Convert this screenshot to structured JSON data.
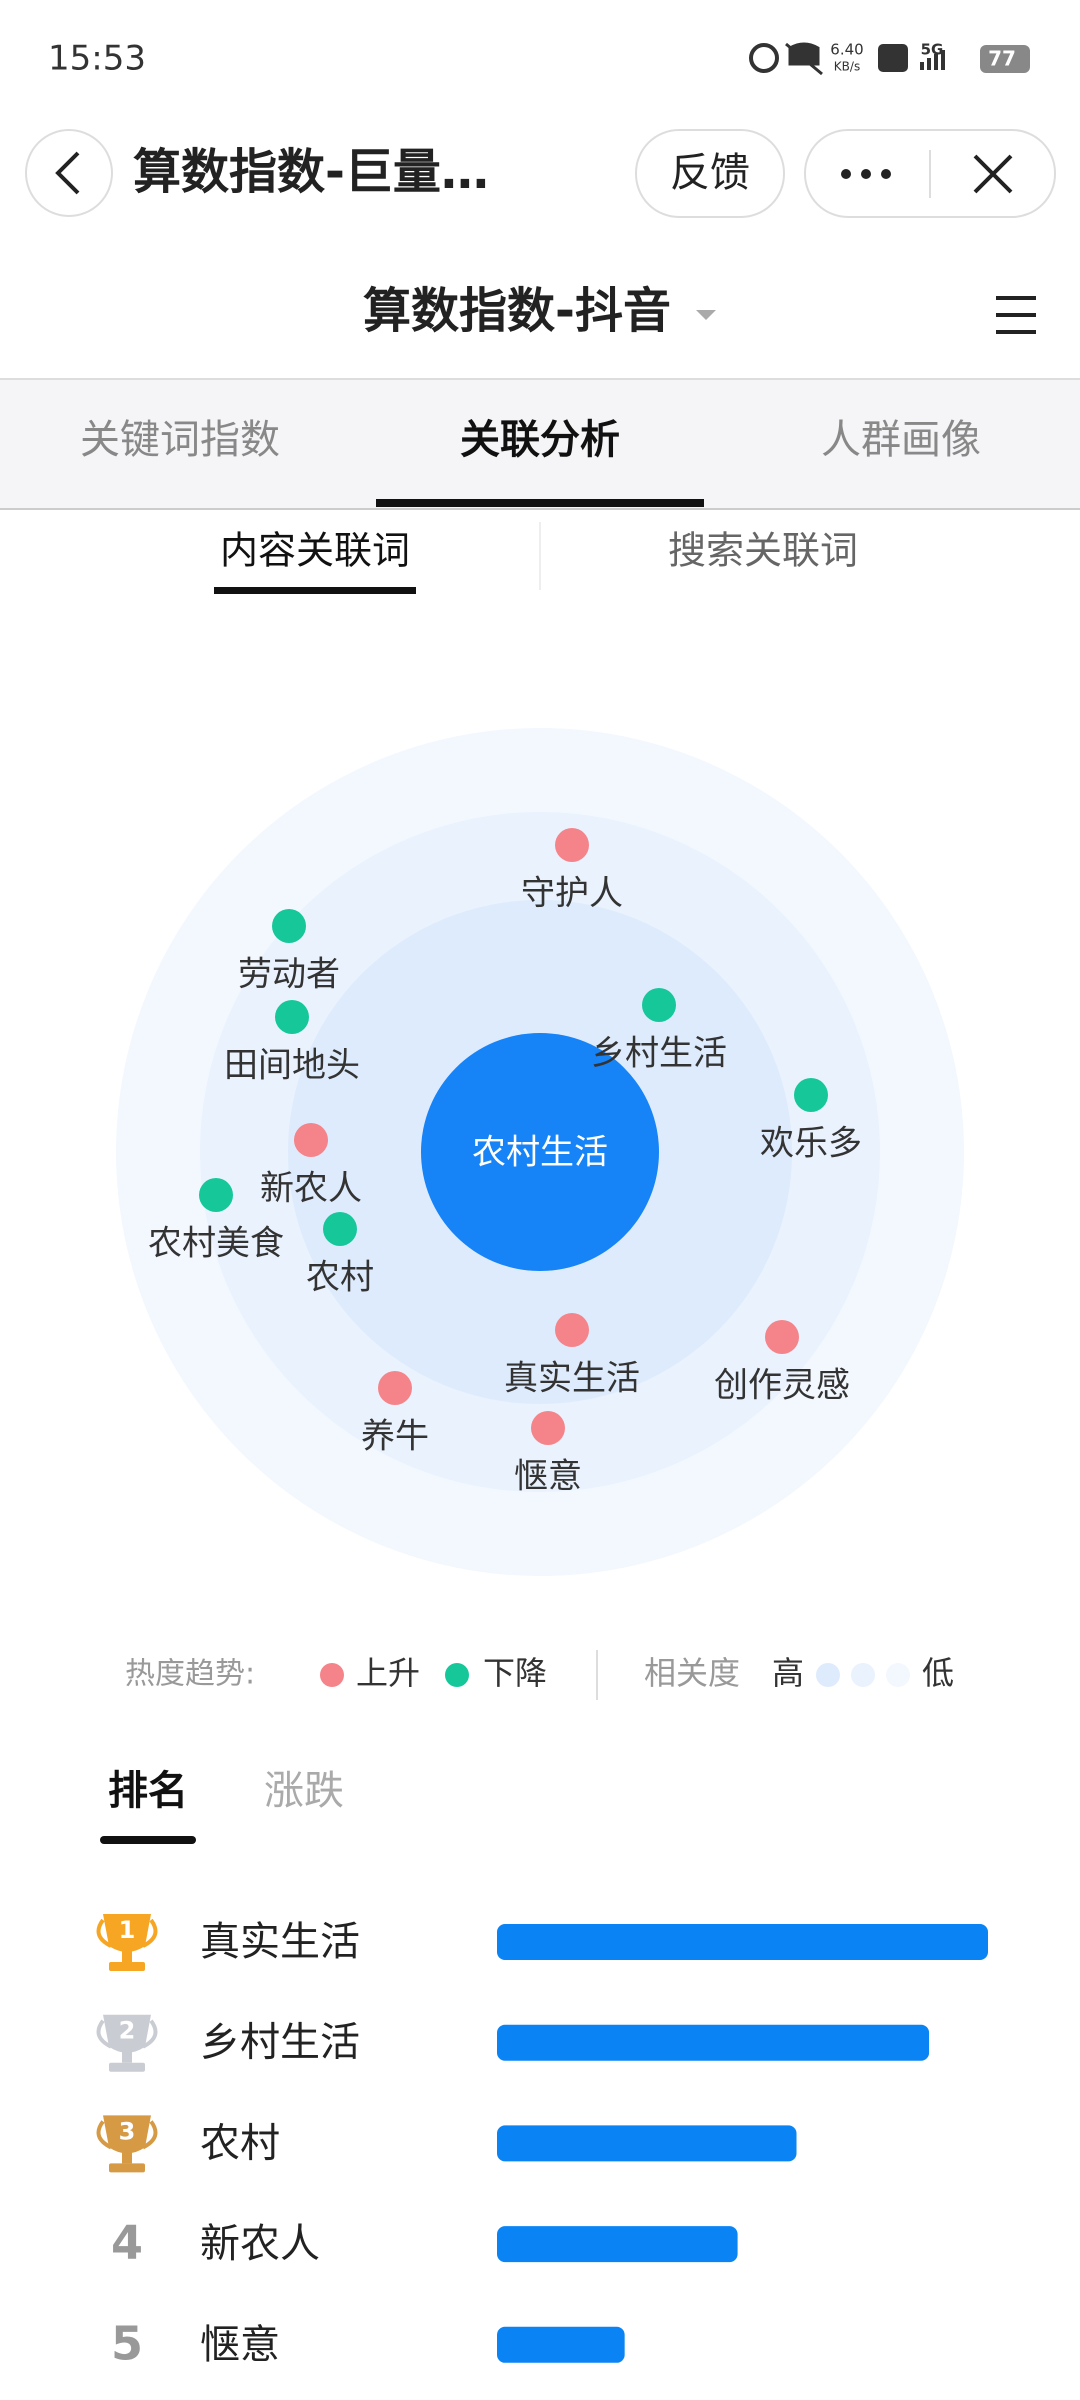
{
  "status_bar": {
    "time": "15:53",
    "net_speed": "6.40",
    "net_unit": "KB/s",
    "network": "5G",
    "battery": "77"
  },
  "header": {
    "title": "算数指数-巨量…",
    "feedback": "反馈"
  },
  "subheader": {
    "title": "算数指数-抖音"
  },
  "tabs": [
    "关键词指数",
    "关联分析",
    "人群画像"
  ],
  "active_tab": 1,
  "subtabs": [
    "内容关联词",
    "搜索关联词"
  ],
  "active_subtab": 0,
  "graph": {
    "center": "农村生活",
    "nodes": [
      {
        "label": "守护人",
        "trend": "up"
      },
      {
        "label": "劳动者",
        "trend": "down"
      },
      {
        "label": "田间地头",
        "trend": "down"
      },
      {
        "label": "乡村生活",
        "trend": "down"
      },
      {
        "label": "欢乐多",
        "trend": "down"
      },
      {
        "label": "新农人",
        "trend": "up"
      },
      {
        "label": "农村美食",
        "trend": "down"
      },
      {
        "label": "农村",
        "trend": "down"
      },
      {
        "label": "真实生活",
        "trend": "up"
      },
      {
        "label": "创作灵感",
        "trend": "up"
      },
      {
        "label": "养牛",
        "trend": "up"
      },
      {
        "label": "惬意",
        "trend": "up"
      }
    ]
  },
  "legend": {
    "trend_label": "热度趋势:",
    "up": "上升",
    "down": "下降",
    "relevance_label": "相关度",
    "high": "高",
    "low": "低"
  },
  "ranking": {
    "tabs": [
      "排名",
      "涨跌"
    ],
    "active_tab": 0,
    "items": [
      {
        "rank": 1,
        "label": "真实生活",
        "value": 100
      },
      {
        "rank": 2,
        "label": "乡村生活",
        "value": 88
      },
      {
        "rank": 3,
        "label": "农村",
        "value": 61
      },
      {
        "rank": 4,
        "label": "新农人",
        "value": 49
      },
      {
        "rank": 5,
        "label": "惬意",
        "value": 26
      }
    ]
  }
}
